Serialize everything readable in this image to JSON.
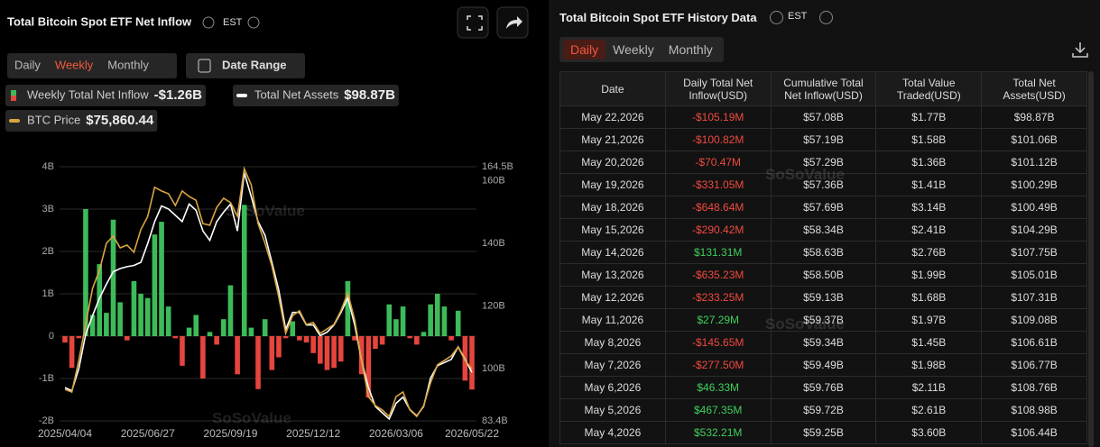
{
  "chart_panel": {
    "title": "Total Bitcoin Spot ETF Net Inflow",
    "timezone": "EST",
    "tabs": [
      "Daily",
      "Weekly",
      "Monthly"
    ],
    "active_tab": 1,
    "date_range": "Date Range",
    "watermark": "SoSoValue"
  },
  "chart_data": {
    "type": "combo",
    "categories": [
      "2025/04/04",
      null,
      null,
      null,
      null,
      null,
      null,
      null,
      null,
      null,
      null,
      null,
      "2025/06/27",
      null,
      null,
      null,
      null,
      null,
      null,
      null,
      null,
      null,
      null,
      null,
      "2025/09/19",
      null,
      null,
      null,
      null,
      null,
      null,
      null,
      null,
      null,
      null,
      null,
      "2025/12/12",
      null,
      null,
      null,
      null,
      null,
      null,
      null,
      null,
      null,
      null,
      null,
      "2026/03/06",
      null,
      null,
      null,
      null,
      null,
      null,
      null,
      null,
      null,
      null,
      "2026/05/22"
    ],
    "series": [
      {
        "name": "Weekly Total Net Inflow",
        "latest": "-$1.26B",
        "type": "bar",
        "color_positive": "#3dbb5a",
        "color_negative": "#e5453d",
        "values": [
          -0.15,
          -0.75,
          -0.05,
          3.0,
          0.5,
          1.7,
          0.55,
          2.75,
          0.8,
          -0.1,
          1.3,
          1.0,
          0.9,
          2.4,
          2.7,
          0.7,
          -0.05,
          -0.7,
          0.2,
          0.5,
          -1.0,
          0.1,
          -0.2,
          0.4,
          1.2,
          -0.9,
          3.1,
          0.2,
          -1.25,
          0.4,
          -0.8,
          -0.5,
          -0.05,
          0.35,
          -0.1,
          -0.15,
          -0.4,
          -0.65,
          -0.8,
          -0.75,
          -0.6,
          1.3,
          -0.1,
          -0.9,
          -1.45,
          -0.3,
          -0.2,
          0.75,
          0.4,
          0.7,
          -0.05,
          -0.2,
          0.1,
          0.75,
          1.0,
          0.7,
          -0.1,
          0.6,
          -1.05,
          -1.26
        ]
      },
      {
        "name": "Total Net Assets",
        "latest": "$98.87B",
        "type": "line",
        "axis": "y2",
        "color": "#ffffff",
        "values": [
          94,
          93,
          100,
          111,
          117,
          122.5,
          127,
          131,
          132,
          132.6,
          133,
          134,
          140,
          147,
          152,
          151,
          149,
          147,
          152.6,
          150.6,
          144,
          141,
          147,
          150,
          152.6,
          144,
          162.6,
          155,
          147,
          142.6,
          134,
          125,
          112.6,
          118,
          118,
          114,
          114,
          110.6,
          111.7,
          114,
          118,
          122.6,
          114,
          102.6,
          94,
          88,
          86,
          84,
          89,
          91,
          87,
          85,
          88,
          97,
          101,
          102,
          103,
          107,
          103,
          98.87
        ]
      },
      {
        "name": "BTC Price",
        "latest": "$75,860.44",
        "type": "line",
        "axis": "y3",
        "color": "#d9a441",
        "values": [
          70800,
          70150,
          77970,
          86900,
          95840,
          100300,
          107000,
          108800,
          105900,
          106560,
          104800,
          110400,
          113700,
          120900,
          120000,
          119300,
          116400,
          120000,
          118600,
          117700,
          111900,
          111500,
          115900,
          118200,
          117100,
          113700,
          125500,
          121500,
          111900,
          107000,
          101400,
          93600,
          84700,
          89100,
          90300,
          86900,
          87400,
          84700,
          85800,
          86900,
          90300,
          94700,
          88000,
          77970,
          69000,
          66800,
          65700,
          64100,
          69000,
          70150,
          65700,
          64100,
          66800,
          72400,
          76900,
          78000,
          79100,
          81300,
          78000,
          75860.44
        ]
      }
    ],
    "ylim": [
      -2,
      4
    ],
    "yticks": [
      {
        "value": -2,
        "label": "-2B"
      },
      {
        "value": -1,
        "label": "-1B"
      },
      0,
      {
        "value": 1,
        "label": "1B"
      },
      {
        "value": 2,
        "label": "2B"
      },
      {
        "value": 3,
        "label": "3B"
      },
      {
        "value": 4,
        "label": "4B"
      }
    ],
    "y2lim": [
      83.4,
      164.5
    ],
    "y2ticks": [
      {
        "value": 83.4,
        "label": "83.4B"
      },
      {
        "value": 100,
        "label": "100B"
      },
      {
        "value": 120,
        "label": "120B"
      },
      {
        "value": 140,
        "label": "140B"
      },
      {
        "value": 160,
        "label": "160B"
      },
      {
        "value": 164.5,
        "label": "164.5B"
      }
    ],
    "y3lim": [
      63000,
      126000
    ],
    "grid": true
  },
  "table_panel": {
    "title": "Total Bitcoin Spot ETF History Data",
    "timezone": "EST",
    "tabs": [
      "Daily",
      "Weekly",
      "Monthly"
    ],
    "active_tab": 0,
    "watermark": "SoSoValue",
    "columns": [
      "Date",
      "Daily Total Net Inflow(USD)",
      "Cumulative Total Net Inflow(USD)",
      "Total Value Traded(USD)",
      "Total Net Assets(USD)"
    ],
    "rows": [
      [
        "May 22,2026",
        "-$105.19M",
        "$57.08B",
        "$1.77B",
        "$98.87B"
      ],
      [
        "May 21,2026",
        "-$100.82M",
        "$57.19B",
        "$1.58B",
        "$101.06B"
      ],
      [
        "May 20,2026",
        "-$70.47M",
        "$57.29B",
        "$1.36B",
        "$101.12B"
      ],
      [
        "May 19,2026",
        "-$331.05M",
        "$57.36B",
        "$1.41B",
        "$100.29B"
      ],
      [
        "May 18,2026",
        "-$648.64M",
        "$57.69B",
        "$3.14B",
        "$100.49B"
      ],
      [
        "May 15,2026",
        "-$290.42M",
        "$58.34B",
        "$2.41B",
        "$104.29B"
      ],
      [
        "May 14,2026",
        "$131.31M",
        "$58.63B",
        "$2.76B",
        "$107.75B"
      ],
      [
        "May 13,2026",
        "-$635.23M",
        "$58.50B",
        "$1.99B",
        "$105.01B"
      ],
      [
        "May 12,2026",
        "-$233.25M",
        "$59.13B",
        "$1.68B",
        "$107.31B"
      ],
      [
        "May 11,2026",
        "$27.29M",
        "$59.37B",
        "$1.97B",
        "$109.08B"
      ],
      [
        "May 8,2026",
        "-$145.65M",
        "$59.34B",
        "$1.45B",
        "$106.61B"
      ],
      [
        "May 7,2026",
        "-$277.50M",
        "$59.49B",
        "$1.98B",
        "$106.77B"
      ],
      [
        "May 6,2026",
        "$46.33M",
        "$59.76B",
        "$2.11B",
        "$108.76B"
      ],
      [
        "May 5,2026",
        "$467.35M",
        "$59.72B",
        "$2.61B",
        "$108.98B"
      ],
      [
        "May 4,2026",
        "$532.21M",
        "$59.25B",
        "$3.60B",
        "$106.44B"
      ]
    ]
  }
}
